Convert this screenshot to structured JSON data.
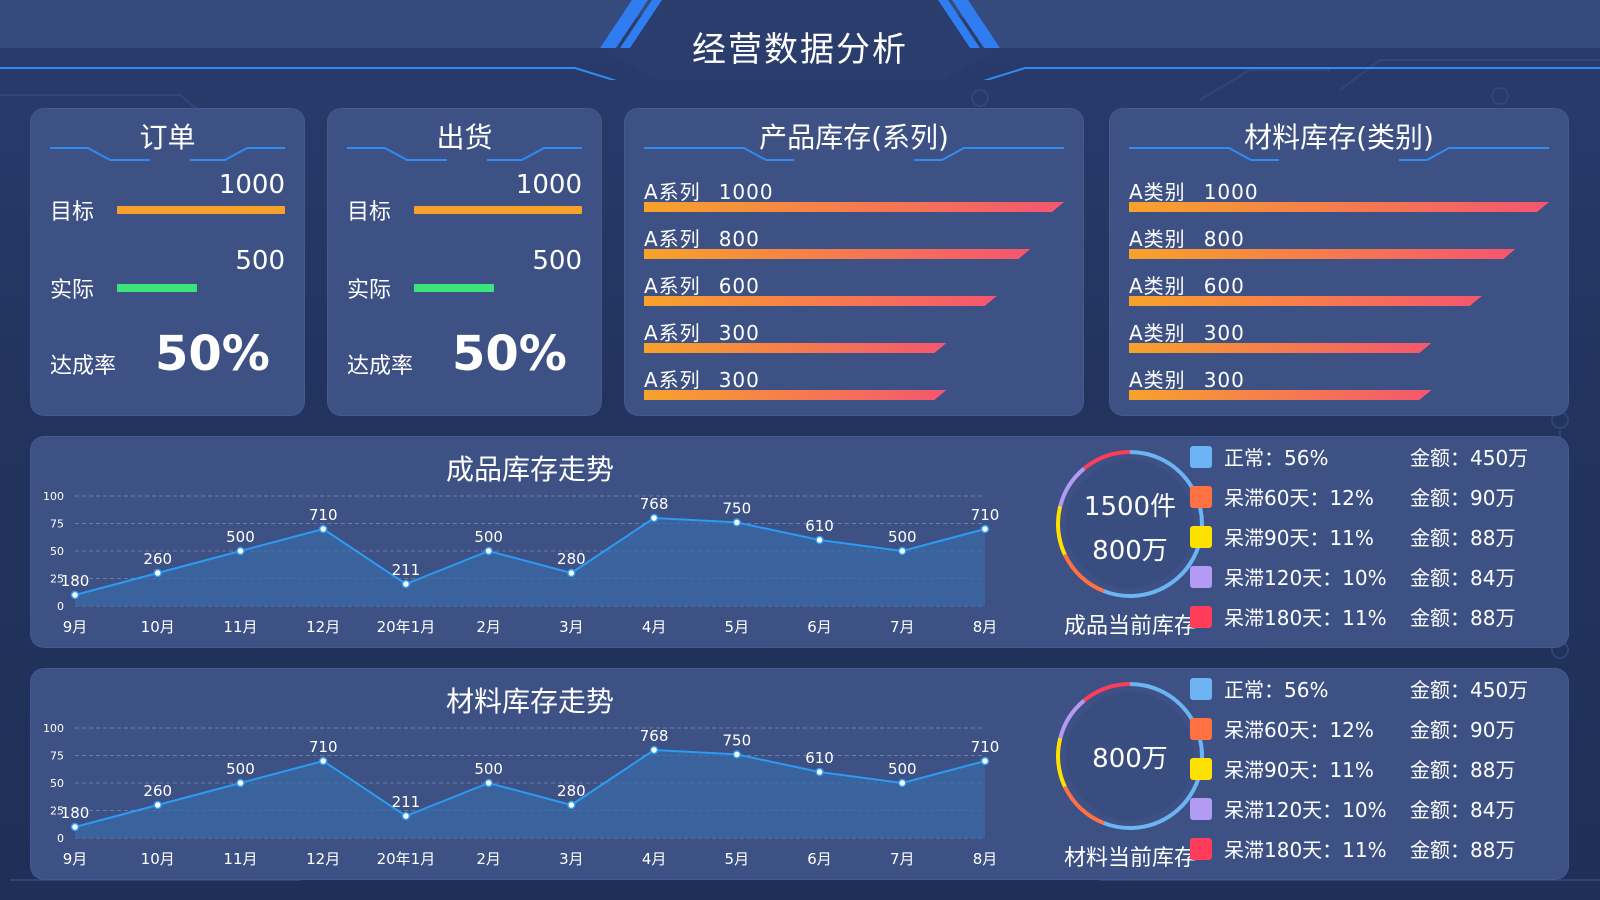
{
  "header": {
    "title": "经营数据分析"
  },
  "order": {
    "title": "订单",
    "target_label": "目标",
    "target_value": "1000",
    "actual_label": "实际",
    "actual_value": "500",
    "rate_label": "达成率",
    "rate_value": "50%"
  },
  "shipment": {
    "title": "出货",
    "target_label": "目标",
    "target_value": "1000",
    "actual_label": "实际",
    "actual_value": "500",
    "rate_label": "达成率",
    "rate_value": "50%"
  },
  "product_inventory": {
    "title": "产品库存(系列)",
    "rows": [
      {
        "name": "A系列",
        "value": 1000
      },
      {
        "name": "A系列",
        "value": 800
      },
      {
        "name": "A系列",
        "value": 600
      },
      {
        "name": "A系列",
        "value": 300
      },
      {
        "name": "A系列",
        "value": 300
      }
    ]
  },
  "material_inventory": {
    "title": "材料库存(类别)",
    "rows": [
      {
        "name": "A类别",
        "value": 1000
      },
      {
        "name": "A类别",
        "value": 800
      },
      {
        "name": "A类别",
        "value": 600
      },
      {
        "name": "A类别",
        "value": 300
      },
      {
        "name": "A类别",
        "value": 300
      }
    ]
  },
  "colors": {
    "target_bar": "#f7a22b",
    "actual_bar": "#3be57a",
    "line": "#2b9bf4",
    "area": "#3a6aa6",
    "legend": [
      "#6db4f5",
      "#ff7043",
      "#ffe100",
      "#b39bf5",
      "#ff3d5a"
    ]
  },
  "product_trend": {
    "title": "成品库存走势",
    "donut_line1": "1500件",
    "donut_line2": "800万",
    "donut_caption": "成品当前库存",
    "legend": [
      {
        "name": "正常：56%",
        "amount": "金额：450万"
      },
      {
        "name": "呆滞60天：12%",
        "amount": "金额：90万"
      },
      {
        "name": "呆滞90天：11%",
        "amount": "金额：88万"
      },
      {
        "name": "呆滞120天：10%",
        "amount": "金额：84万"
      },
      {
        "name": "呆滞180天：11%",
        "amount": "金额：88万"
      }
    ]
  },
  "material_trend": {
    "title": "材料库存走势",
    "donut_line1": "800万",
    "donut_caption": "材料当前库存",
    "legend": [
      {
        "name": "正常：56%",
        "amount": "金额：450万"
      },
      {
        "name": "呆滞60天：12%",
        "amount": "金额：90万"
      },
      {
        "name": "呆滞90天：11%",
        "amount": "金额：88万"
      },
      {
        "name": "呆滞120天：10%",
        "amount": "金额：84万"
      },
      {
        "name": "呆滞180天：11%",
        "amount": "金额：88万"
      }
    ]
  },
  "chart_data": [
    {
      "type": "area",
      "title": "成品库存走势",
      "x": [
        "9月",
        "10月",
        "11月",
        "12月",
        "20年1月",
        "2月",
        "3月",
        "4月",
        "5月",
        "6月",
        "7月",
        "8月"
      ],
      "values": [
        10,
        30,
        50,
        70,
        20,
        50,
        30,
        80,
        76,
        60,
        50,
        70
      ],
      "labels": [
        "180",
        "260",
        "500",
        "710",
        "211",
        "500",
        "280",
        "768",
        "750",
        "610",
        "500",
        "710"
      ],
      "yticks": [
        "0",
        "25",
        "50",
        "75",
        "100"
      ],
      "ylim": [
        0,
        100
      ],
      "grid": true
    },
    {
      "type": "area",
      "title": "材料库存走势",
      "x": [
        "9月",
        "10月",
        "11月",
        "12月",
        "20年1月",
        "2月",
        "3月",
        "4月",
        "5月",
        "6月",
        "7月",
        "8月"
      ],
      "values": [
        10,
        30,
        50,
        70,
        20,
        50,
        30,
        80,
        76,
        60,
        50,
        70
      ],
      "labels": [
        "180",
        "260",
        "500",
        "710",
        "211",
        "500",
        "280",
        "768",
        "750",
        "610",
        "500",
        "710"
      ],
      "yticks": [
        "0",
        "25",
        "50",
        "75",
        "100"
      ],
      "ylim": [
        0,
        100
      ],
      "grid": true
    },
    {
      "type": "pie",
      "title": "",
      "categories": [
        "正常",
        "呆滞60天",
        "呆滞90天",
        "呆滞120天",
        "呆滞180天"
      ],
      "values": [
        56,
        12,
        11,
        10,
        11
      ]
    }
  ]
}
